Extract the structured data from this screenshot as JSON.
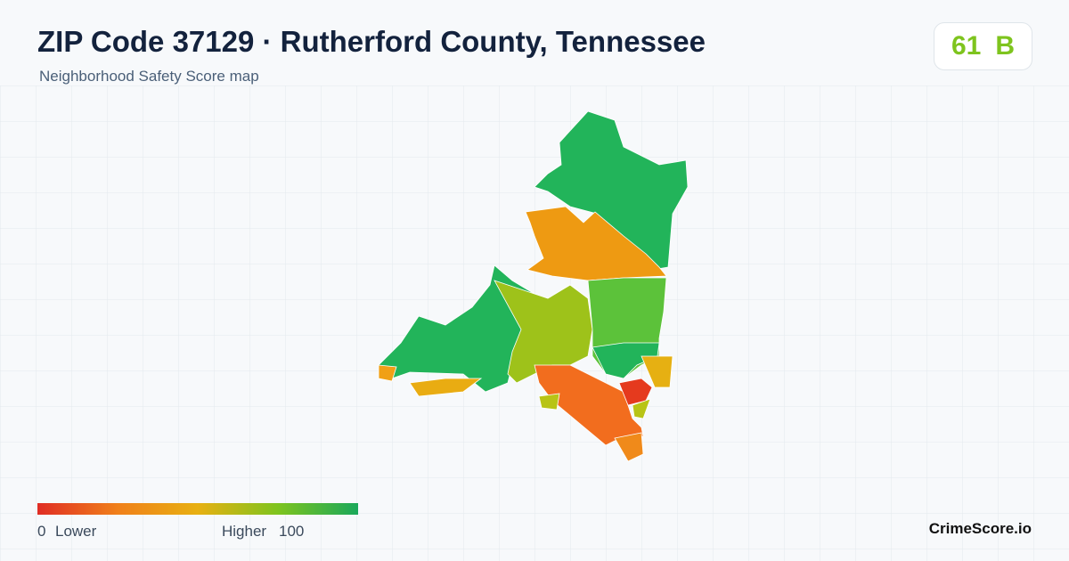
{
  "header": {
    "title": "ZIP Code 37129 · Rutherford County, Tennessee",
    "subtitle": "Neighborhood Safety Score map"
  },
  "score": {
    "value": 61,
    "grade": "B"
  },
  "legend": {
    "min": 0,
    "min_label": "Lower",
    "max_label": "Higher",
    "max": 100
  },
  "footer": {
    "brand": "CrimeScore.io"
  }
}
